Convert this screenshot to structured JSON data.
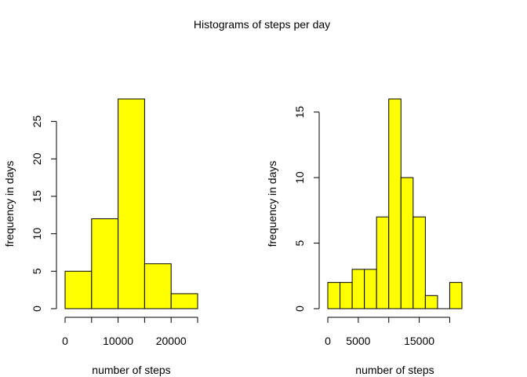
{
  "title": "Histograms of steps per day",
  "colors": {
    "bar_fill": "#ffff00",
    "bar_stroke": "#000000",
    "axis": "#000000"
  },
  "chart_data": [
    {
      "type": "bar",
      "bins": [
        [
          0,
          5000
        ],
        [
          5000,
          10000
        ],
        [
          10000,
          15000
        ],
        [
          15000,
          20000
        ],
        [
          20000,
          25000
        ]
      ],
      "values": [
        5,
        12,
        28,
        6,
        2
      ],
      "xlabel": "number of steps",
      "ylabel": "frequency in days",
      "x_ticks": [
        0,
        5000,
        10000,
        15000,
        20000,
        25000
      ],
      "x_tick_labels": [
        "0",
        "",
        "10000",
        "",
        "20000",
        ""
      ],
      "y_ticks": [
        0,
        5,
        10,
        15,
        20,
        25
      ],
      "y_tick_labels": [
        "0",
        "5",
        "10",
        "15",
        "20",
        "25"
      ],
      "xlim": [
        0,
        25000
      ],
      "ylim": [
        0,
        28
      ],
      "grid": false,
      "legend": "none"
    },
    {
      "type": "bar",
      "bins": [
        [
          0,
          2000
        ],
        [
          2000,
          4000
        ],
        [
          4000,
          6000
        ],
        [
          6000,
          8000
        ],
        [
          8000,
          10000
        ],
        [
          10000,
          12000
        ],
        [
          12000,
          14000
        ],
        [
          14000,
          16000
        ],
        [
          16000,
          18000
        ],
        [
          18000,
          20000
        ],
        [
          20000,
          22000
        ]
      ],
      "values": [
        2,
        2,
        3,
        3,
        7,
        16,
        10,
        7,
        1,
        0,
        2
      ],
      "xlabel": "number of steps",
      "ylabel": "frequency in days",
      "x_ticks": [
        0,
        5000,
        10000,
        15000,
        20000
      ],
      "x_tick_labels": [
        "0",
        "5000",
        "",
        "15000",
        ""
      ],
      "y_ticks": [
        0,
        5,
        10,
        15
      ],
      "y_tick_labels": [
        "0",
        "5",
        "10",
        "15"
      ],
      "xlim": [
        0,
        22000
      ],
      "ylim": [
        0,
        16
      ],
      "grid": false,
      "legend": "none"
    }
  ]
}
